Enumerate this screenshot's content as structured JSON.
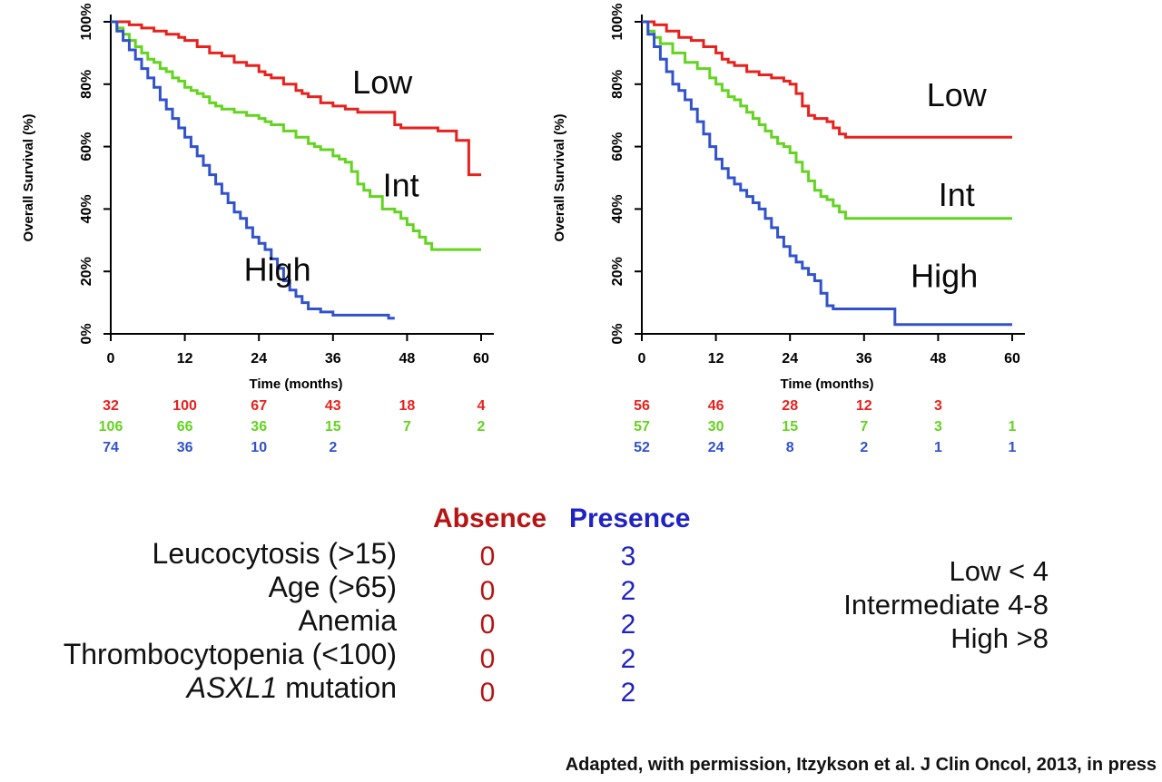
{
  "attribution": "Adapted, with permission, Itzykson et al. J Clin Oncol, 2013, in press",
  "score_table": {
    "columns": [
      "Absence",
      "Presence"
    ],
    "column_colors": [
      "#b81414",
      "#2022c4"
    ],
    "rows": [
      {
        "label": "Leucocytosis (>15)",
        "absence": "0",
        "presence": "3"
      },
      {
        "label": "Age (>65)",
        "absence": "0",
        "presence": "2"
      },
      {
        "label": "Anemia",
        "absence": "0",
        "presence": "2"
      },
      {
        "label": "Thrombocytopenia (<100)",
        "absence": "0",
        "presence": "2"
      },
      {
        "label_italic": "ASXL1",
        "label_rest": " mutation",
        "absence": "0",
        "presence": "2"
      }
    ]
  },
  "risk_groups": [
    "Low < 4",
    "Intermediate 4-8",
    "High >8"
  ],
  "colors": {
    "low": "#e8211d",
    "int": "#63d41f",
    "high": "#3152cc"
  },
  "chart_data": [
    {
      "type": "line",
      "subtype": "kaplan-meier-step",
      "xlabel": "Time (months)",
      "ylabel": "Overall Survival (%)",
      "xlim": [
        0,
        60
      ],
      "ylim": [
        0,
        100
      ],
      "xticks": [
        0,
        12,
        24,
        36,
        48,
        60
      ],
      "xtick_labels": [
        "0",
        "12",
        "24",
        "36",
        "48",
        "60"
      ],
      "yticks": [
        0,
        20,
        40,
        60,
        80,
        100
      ],
      "ytick_labels": [
        "0%",
        "20%",
        "40%",
        "60%",
        "80%",
        "100%"
      ],
      "series": [
        {
          "name": "Low",
          "color": "#e8211d",
          "label_x": 44,
          "label_y": 77,
          "points": [
            [
              0,
              100
            ],
            [
              3,
              99
            ],
            [
              5,
              98
            ],
            [
              7,
              97
            ],
            [
              9,
              96
            ],
            [
              11,
              95
            ],
            [
              12,
              94
            ],
            [
              14,
              92
            ],
            [
              16,
              90
            ],
            [
              18,
              89
            ],
            [
              20,
              87
            ],
            [
              22,
              86
            ],
            [
              24,
              84
            ],
            [
              25,
              83
            ],
            [
              26,
              82
            ],
            [
              28,
              80
            ],
            [
              30,
              78
            ],
            [
              31,
              77
            ],
            [
              32,
              76
            ],
            [
              34,
              74
            ],
            [
              36,
              73
            ],
            [
              38,
              72
            ],
            [
              40,
              71
            ],
            [
              46,
              67
            ],
            [
              47,
              66
            ],
            [
              53,
              65
            ],
            [
              56,
              62
            ],
            [
              58,
              51
            ],
            [
              60,
              51
            ]
          ]
        },
        {
          "name": "Int",
          "color": "#63d41f",
          "label_x": 47,
          "label_y": 44,
          "points": [
            [
              0,
              100
            ],
            [
              1,
              98
            ],
            [
              2,
              96
            ],
            [
              3,
              94
            ],
            [
              4,
              92
            ],
            [
              5,
              90
            ],
            [
              6,
              88
            ],
            [
              7,
              87
            ],
            [
              8,
              85
            ],
            [
              9,
              84
            ],
            [
              10,
              82
            ],
            [
              11,
              81
            ],
            [
              12,
              79
            ],
            [
              13,
              78
            ],
            [
              14,
              77
            ],
            [
              15,
              76
            ],
            [
              16,
              74
            ],
            [
              17,
              73
            ],
            [
              18,
              72
            ],
            [
              20,
              71
            ],
            [
              22,
              70
            ],
            [
              24,
              69
            ],
            [
              25,
              68
            ],
            [
              26,
              67
            ],
            [
              28,
              65
            ],
            [
              30,
              63
            ],
            [
              32,
              61
            ],
            [
              33,
              60
            ],
            [
              34,
              59
            ],
            [
              36,
              57
            ],
            [
              37,
              56
            ],
            [
              38,
              55
            ],
            [
              39,
              52
            ],
            [
              40,
              48
            ],
            [
              41,
              46
            ],
            [
              42,
              44
            ],
            [
              44,
              40
            ],
            [
              46,
              39
            ],
            [
              47,
              37
            ],
            [
              48,
              35
            ],
            [
              49,
              33
            ],
            [
              50,
              31
            ],
            [
              51,
              29
            ],
            [
              52,
              27
            ],
            [
              60,
              27
            ]
          ]
        },
        {
          "name": "High",
          "color": "#3152cc",
          "label_x": 27,
          "label_y": 17,
          "points": [
            [
              0,
              100
            ],
            [
              1,
              97
            ],
            [
              2,
              94
            ],
            [
              3,
              91
            ],
            [
              4,
              88
            ],
            [
              5,
              85
            ],
            [
              6,
              82
            ],
            [
              7,
              79
            ],
            [
              8,
              75
            ],
            [
              9,
              72
            ],
            [
              10,
              69
            ],
            [
              11,
              66
            ],
            [
              12,
              63
            ],
            [
              13,
              60
            ],
            [
              14,
              57
            ],
            [
              15,
              54
            ],
            [
              16,
              51
            ],
            [
              17,
              48
            ],
            [
              18,
              45
            ],
            [
              19,
              42
            ],
            [
              20,
              39
            ],
            [
              21,
              37
            ],
            [
              22,
              34
            ],
            [
              23,
              31
            ],
            [
              24,
              29
            ],
            [
              25,
              27
            ],
            [
              26,
              24
            ],
            [
              27,
              21
            ],
            [
              28,
              17
            ],
            [
              29,
              14
            ],
            [
              30,
              12
            ],
            [
              31,
              10
            ],
            [
              32,
              8
            ],
            [
              34,
              7
            ],
            [
              36,
              6
            ],
            [
              44,
              6
            ],
            [
              45,
              5
            ],
            [
              46,
              5
            ]
          ]
        }
      ],
      "at_risk": [
        {
          "name": "Low",
          "color": "#e8211d",
          "values": [
            "32",
            "100",
            "67",
            "43",
            "18",
            "4"
          ]
        },
        {
          "name": "Int",
          "color": "#63d41f",
          "values": [
            "106",
            "66",
            "36",
            "15",
            "7",
            "2"
          ]
        },
        {
          "name": "High",
          "color": "#3152cc",
          "values": [
            "74",
            "36",
            "10",
            "2"
          ]
        }
      ]
    },
    {
      "type": "line",
      "subtype": "kaplan-meier-step",
      "xlabel": "Time (months)",
      "ylabel": "Overall Survival (%)",
      "xlim": [
        0,
        60
      ],
      "ylim": [
        0,
        100
      ],
      "xticks": [
        0,
        12,
        24,
        36,
        48,
        60
      ],
      "xtick_labels": [
        "0",
        "12",
        "24",
        "36",
        "48",
        "60"
      ],
      "yticks": [
        0,
        20,
        40,
        60,
        80,
        100
      ],
      "ytick_labels": [
        "0%",
        "20%",
        "40%",
        "60%",
        "80%",
        "100%"
      ],
      "series": [
        {
          "name": "Low",
          "color": "#e8211d",
          "label_x": 51,
          "label_y": 73,
          "points": [
            [
              0,
              100
            ],
            [
              2,
              99
            ],
            [
              4,
              97
            ],
            [
              6,
              95
            ],
            [
              8,
              94
            ],
            [
              10,
              92
            ],
            [
              12,
              90
            ],
            [
              13,
              88
            ],
            [
              14,
              87
            ],
            [
              15,
              86
            ],
            [
              17,
              84
            ],
            [
              19,
              83
            ],
            [
              21,
              82
            ],
            [
              23,
              81
            ],
            [
              24,
              80
            ],
            [
              25,
              77
            ],
            [
              26,
              73
            ],
            [
              27,
              70
            ],
            [
              28,
              69
            ],
            [
              30,
              68
            ],
            [
              31,
              66
            ],
            [
              32,
              64
            ],
            [
              33,
              63
            ],
            [
              60,
              63
            ]
          ]
        },
        {
          "name": "Int",
          "color": "#63d41f",
          "label_x": 51,
          "label_y": 41,
          "points": [
            [
              0,
              100
            ],
            [
              1,
              97
            ],
            [
              2,
              95
            ],
            [
              3,
              93
            ],
            [
              5,
              90
            ],
            [
              7,
              87
            ],
            [
              9,
              85
            ],
            [
              11,
              82
            ],
            [
              12,
              80
            ],
            [
              13,
              78
            ],
            [
              14,
              76
            ],
            [
              15,
              75
            ],
            [
              16,
              73
            ],
            [
              17,
              71
            ],
            [
              18,
              69
            ],
            [
              19,
              67
            ],
            [
              20,
              65
            ],
            [
              21,
              63
            ],
            [
              22,
              61
            ],
            [
              23,
              60
            ],
            [
              24,
              58
            ],
            [
              25,
              55
            ],
            [
              26,
              52
            ],
            [
              27,
              49
            ],
            [
              28,
              46
            ],
            [
              29,
              44
            ],
            [
              30,
              43
            ],
            [
              31,
              41
            ],
            [
              32,
              39
            ],
            [
              33,
              37
            ],
            [
              60,
              37
            ]
          ]
        },
        {
          "name": "High",
          "color": "#3152cc",
          "label_x": 49,
          "label_y": 15,
          "points": [
            [
              0,
              100
            ],
            [
              1,
              96
            ],
            [
              2,
              92
            ],
            [
              3,
              88
            ],
            [
              4,
              84
            ],
            [
              5,
              80
            ],
            [
              6,
              78
            ],
            [
              7,
              75
            ],
            [
              8,
              72
            ],
            [
              9,
              68
            ],
            [
              10,
              64
            ],
            [
              11,
              60
            ],
            [
              12,
              56
            ],
            [
              13,
              53
            ],
            [
              14,
              50
            ],
            [
              15,
              48
            ],
            [
              16,
              46
            ],
            [
              17,
              44
            ],
            [
              18,
              42
            ],
            [
              19,
              40
            ],
            [
              20,
              37
            ],
            [
              21,
              34
            ],
            [
              22,
              31
            ],
            [
              23,
              28
            ],
            [
              24,
              25
            ],
            [
              25,
              23
            ],
            [
              26,
              21
            ],
            [
              27,
              19
            ],
            [
              28,
              17
            ],
            [
              29,
              13
            ],
            [
              30,
              9
            ],
            [
              31,
              8
            ],
            [
              40,
              8
            ],
            [
              41,
              3
            ],
            [
              60,
              3
            ]
          ]
        }
      ],
      "at_risk": [
        {
          "name": "Low",
          "color": "#e8211d",
          "values": [
            "56",
            "46",
            "28",
            "12",
            "3"
          ]
        },
        {
          "name": "Int",
          "color": "#63d41f",
          "values": [
            "57",
            "30",
            "15",
            "7",
            "3",
            "1"
          ]
        },
        {
          "name": "High",
          "color": "#3152cc",
          "values": [
            "52",
            "24",
            "8",
            "2",
            "1",
            "1"
          ]
        }
      ]
    }
  ]
}
